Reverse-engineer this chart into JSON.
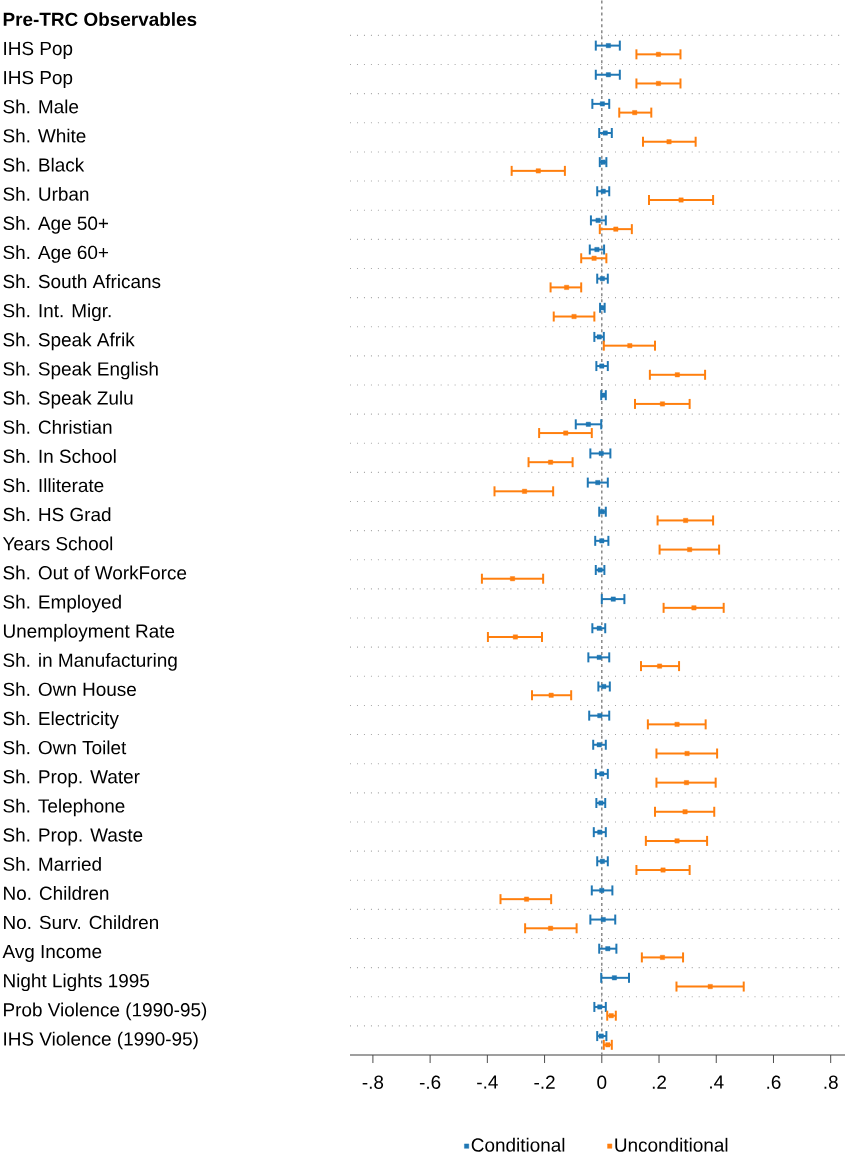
{
  "chart_data": {
    "type": "scatter",
    "orientation": "horizontal",
    "categories": [
      "Pre-TRC Observables",
      "IHS Pop",
      "IHS Pop",
      "Sh. Male",
      "Sh. White",
      "Sh. Black",
      "Sh. Urban",
      "Sh. Age 50+",
      "Sh. Age 60+",
      "Sh. South Africans",
      "Sh. Int. Migr.",
      "Sh. Speak Afrik",
      "Sh. Speak English",
      "Sh. Speak Zulu",
      "Sh. Christian",
      "Sh. In School",
      "Sh. Illiterate",
      "Sh. HS Grad",
      "Years School",
      "Sh. Out of WorkForce",
      "Sh. Employed",
      "Unemployment Rate",
      "Sh. in Manufacturing",
      "Sh. Own House",
      "Sh. Electricity",
      "Sh. Own Toilet",
      "Sh. Prop. Water",
      "Sh. Telephone",
      "Sh. Prop. Waste",
      "Sh. Married",
      "No. Children",
      "No. Surv. Children",
      "Avg Income",
      "Night Lights 1995",
      "Prob Violence (1990-95)",
      "IHS Violence (1990-95)"
    ],
    "series": [
      {
        "name": "Conditional",
        "color": "#1f77b4",
        "values": [
          null,
          0.023,
          0.023,
          0.002,
          0.012,
          0.005,
          0.005,
          -0.013,
          -0.017,
          0.002,
          0.002,
          -0.009,
          0.0,
          0.005,
          -0.047,
          -0.002,
          -0.014,
          0.002,
          0.0,
          -0.006,
          0.04,
          -0.009,
          -0.009,
          0.007,
          -0.007,
          -0.009,
          0.0,
          -0.003,
          -0.007,
          0.002,
          0.0,
          0.005,
          0.021,
          0.044,
          -0.007,
          -0.002
        ],
        "errors": [
          null,
          [
            -0.021,
            0.063
          ],
          [
            -0.021,
            0.063
          ],
          [
            -0.033,
            0.026
          ],
          [
            -0.009,
            0.035
          ],
          [
            -0.007,
            0.016
          ],
          [
            -0.016,
            0.026
          ],
          [
            -0.038,
            0.014
          ],
          [
            -0.042,
            0.008
          ],
          [
            -0.016,
            0.021
          ],
          [
            -0.006,
            0.01
          ],
          [
            -0.026,
            0.007
          ],
          [
            -0.019,
            0.021
          ],
          [
            -0.002,
            0.014
          ],
          [
            -0.091,
            -0.002
          ],
          [
            -0.04,
            0.03
          ],
          [
            -0.049,
            0.021
          ],
          [
            -0.009,
            0.014
          ],
          [
            -0.023,
            0.023
          ],
          [
            -0.021,
            0.009
          ],
          [
            0.0,
            0.079
          ],
          [
            -0.033,
            0.012
          ],
          [
            -0.047,
            0.026
          ],
          [
            -0.012,
            0.028
          ],
          [
            -0.044,
            0.026
          ],
          [
            -0.03,
            0.014
          ],
          [
            -0.021,
            0.021
          ],
          [
            -0.019,
            0.012
          ],
          [
            -0.028,
            0.014
          ],
          [
            -0.016,
            0.021
          ],
          [
            -0.035,
            0.037
          ],
          [
            -0.04,
            0.047
          ],
          [
            -0.009,
            0.051
          ],
          [
            -0.002,
            0.095
          ],
          [
            -0.026,
            0.014
          ],
          [
            -0.016,
            0.016
          ]
        ]
      },
      {
        "name": "Unconditional",
        "color": "#ff7f0e",
        "values": [
          null,
          0.198,
          0.198,
          0.115,
          0.235,
          -0.222,
          0.277,
          0.049,
          -0.027,
          -0.123,
          -0.097,
          0.098,
          0.264,
          0.212,
          -0.126,
          -0.179,
          -0.27,
          0.293,
          0.307,
          -0.312,
          0.322,
          -0.302,
          0.202,
          -0.177,
          0.263,
          0.298,
          0.296,
          0.291,
          0.263,
          0.214,
          -0.263,
          -0.179,
          0.212,
          0.379,
          0.033,
          0.021
        ],
        "errors": [
          null,
          [
            0.121,
            0.275
          ],
          [
            0.121,
            0.275
          ],
          [
            0.061,
            0.173
          ],
          [
            0.144,
            0.328
          ],
          [
            -0.315,
            -0.129
          ],
          [
            0.165,
            0.389
          ],
          [
            -0.007,
            0.105
          ],
          [
            -0.072,
            0.016
          ],
          [
            -0.179,
            -0.072
          ],
          [
            -0.168,
            -0.026
          ],
          [
            0.007,
            0.186
          ],
          [
            0.168,
            0.361
          ],
          [
            0.116,
            0.307
          ],
          [
            -0.219,
            -0.035
          ],
          [
            -0.256,
            -0.102
          ],
          [
            -0.375,
            -0.17
          ],
          [
            0.195,
            0.389
          ],
          [
            0.202,
            0.41
          ],
          [
            -0.419,
            -0.205
          ],
          [
            0.216,
            0.426
          ],
          [
            -0.398,
            -0.209
          ],
          [
            0.137,
            0.27
          ],
          [
            -0.244,
            -0.107
          ],
          [
            0.161,
            0.363
          ],
          [
            0.191,
            0.403
          ],
          [
            0.191,
            0.398
          ],
          [
            0.186,
            0.393
          ],
          [
            0.154,
            0.368
          ],
          [
            0.121,
            0.307
          ],
          [
            -0.354,
            -0.177
          ],
          [
            -0.268,
            -0.088
          ],
          [
            0.14,
            0.284
          ],
          [
            0.261,
            0.496
          ],
          [
            0.019,
            0.049
          ],
          [
            0.007,
            0.035
          ]
        ]
      }
    ],
    "xlim": [
      -0.88,
      0.85
    ],
    "xticks": [
      {
        "value": -0.8,
        "label": "-.8"
      },
      {
        "value": -0.6,
        "label": "-.6"
      },
      {
        "value": -0.4,
        "label": "-.4"
      },
      {
        "value": -0.2,
        "label": "-.2"
      },
      0,
      {
        "value": 0.2,
        "label": ".2"
      },
      {
        "value": 0.4,
        "label": ".4"
      },
      {
        "value": 0.6,
        "label": ".6"
      },
      {
        "value": 0.8,
        "label": ".8"
      }
    ],
    "ref_lines": [
      {
        "axis": "x",
        "value": 0,
        "color": "#888888",
        "line_style": "dashed"
      }
    ],
    "grid": "y",
    "legend": "bottom",
    "marker": "square"
  }
}
